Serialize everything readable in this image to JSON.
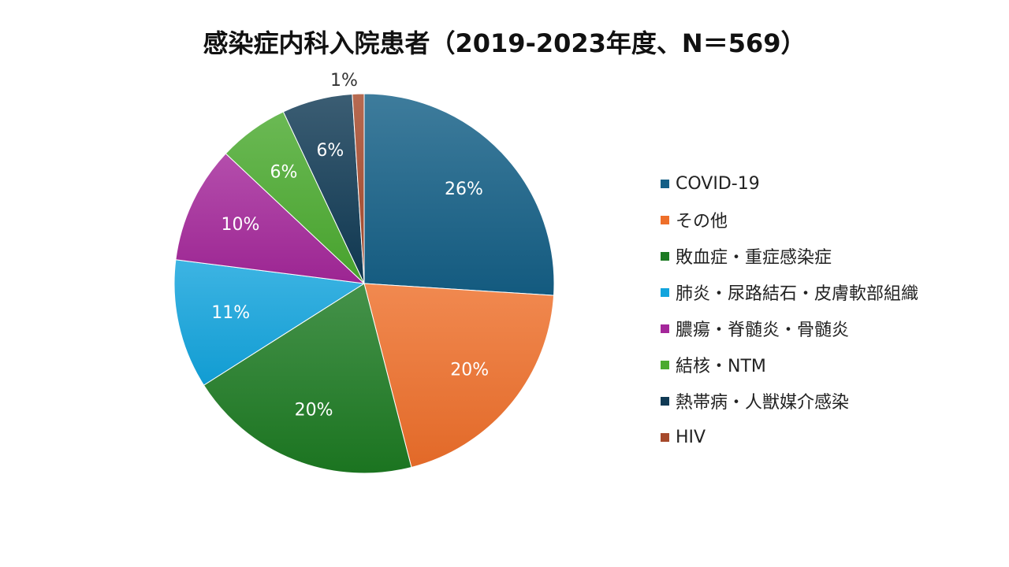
{
  "chart_data": {
    "type": "pie",
    "title": "感染症内科入院患者（2019-2023年度、N＝569）",
    "categories": [
      "COVID-19",
      "その他",
      "敗血症・重症感染症",
      "肺炎・尿路結石・皮膚軟部組織",
      "膿瘍・脊髄炎・骨髄炎",
      "結核・NTM",
      "熱帯病・人獣媒介感染",
      "HIV"
    ],
    "values": [
      26,
      20,
      20,
      11,
      10,
      6,
      6,
      1
    ],
    "data_labels": [
      "26%",
      "20%",
      "20%",
      "11%",
      "10%",
      "6%",
      "6%",
      "1%"
    ],
    "colors": [
      "#145F86",
      "#EE6F2A",
      "#1C7A22",
      "#12A4DD",
      "#A4279A",
      "#4BAA2F",
      "#103A54",
      "#A6492B"
    ],
    "legend_position": "right"
  }
}
